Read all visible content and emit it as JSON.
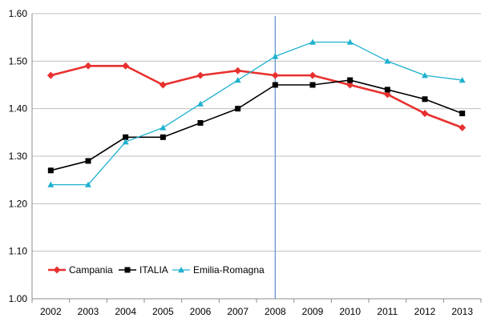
{
  "chart_data": {
    "type": "line",
    "title": "",
    "xlabel": "",
    "ylabel": "",
    "categories": [
      "2002",
      "2003",
      "2004",
      "2005",
      "2006",
      "2007",
      "2008",
      "2009",
      "2010",
      "2011",
      "2012",
      "2013"
    ],
    "ylim": [
      1.0,
      1.6
    ],
    "yticks": [
      "1.00",
      "1.10",
      "1.20",
      "1.30",
      "1.40",
      "1.50",
      "1.60"
    ],
    "grid": true,
    "legend_position": "bottom-left",
    "reference_line_x": "2008",
    "series": [
      {
        "name": "Campania",
        "color": "#e8312f",
        "marker": "diamond",
        "values": [
          1.47,
          1.49,
          1.49,
          1.45,
          1.47,
          1.48,
          1.47,
          1.47,
          1.45,
          1.43,
          1.39,
          1.36
        ]
      },
      {
        "name": "ITALIA",
        "color": "#000000",
        "marker": "square",
        "values": [
          1.27,
          1.29,
          1.34,
          1.34,
          1.37,
          1.4,
          1.45,
          1.45,
          1.46,
          1.44,
          1.42,
          1.39
        ]
      },
      {
        "name": "Emilia-Romagna",
        "color": "#1fb1cf",
        "marker": "triangle",
        "values": [
          1.24,
          1.24,
          1.33,
          1.36,
          1.41,
          1.46,
          1.51,
          1.54,
          1.54,
          1.5,
          1.47,
          1.46
        ]
      }
    ],
    "reference_line_color": "#5b8fd0"
  }
}
